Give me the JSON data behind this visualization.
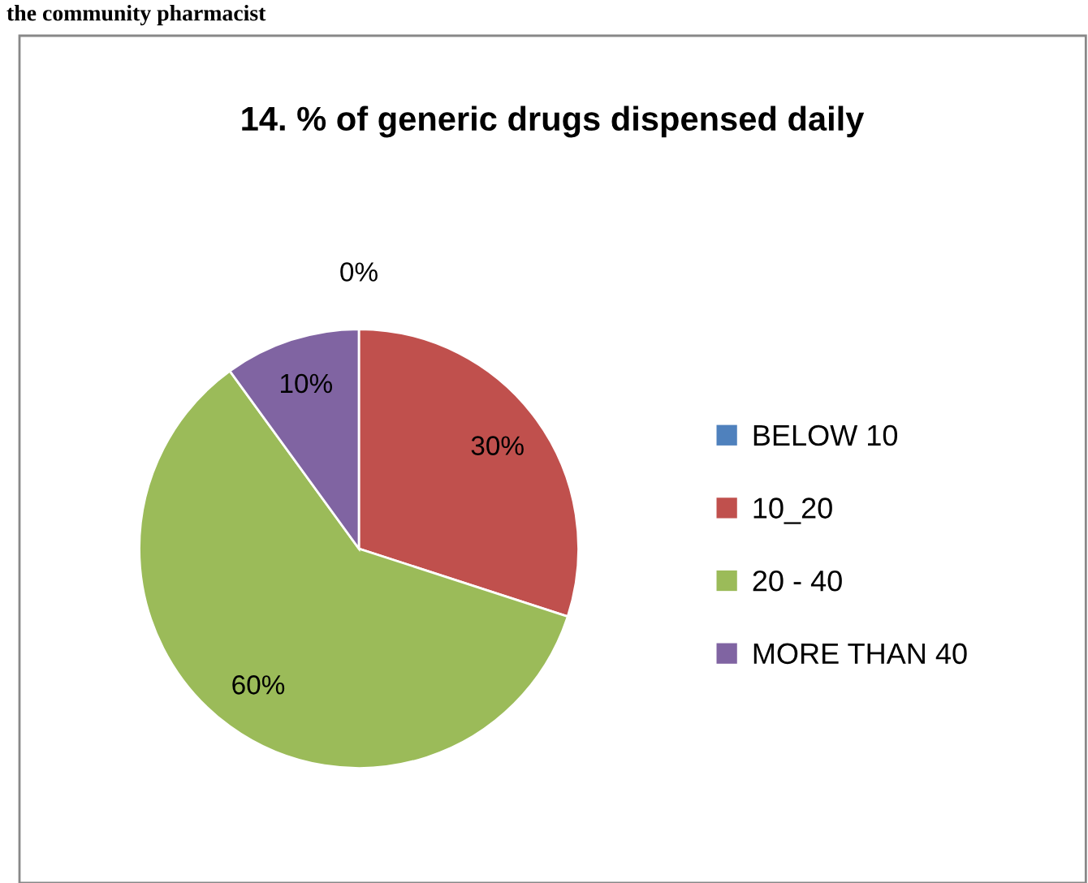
{
  "chart_data": {
    "type": "pie",
    "title": "14. % of generic drugs dispensed daily",
    "categories": [
      "BELOW 10",
      "10_20",
      "20 - 40",
      "MORE THAN 40"
    ],
    "values": [
      0,
      30,
      60,
      10
    ],
    "colors": [
      "#4f81bd",
      "#c0504d",
      "#9bbb59",
      "#8064a2"
    ],
    "value_labels": [
      "0%",
      "30%",
      "60%",
      "10%"
    ],
    "legend": "right",
    "annotations": [
      "the community pharmacist"
    ]
  }
}
